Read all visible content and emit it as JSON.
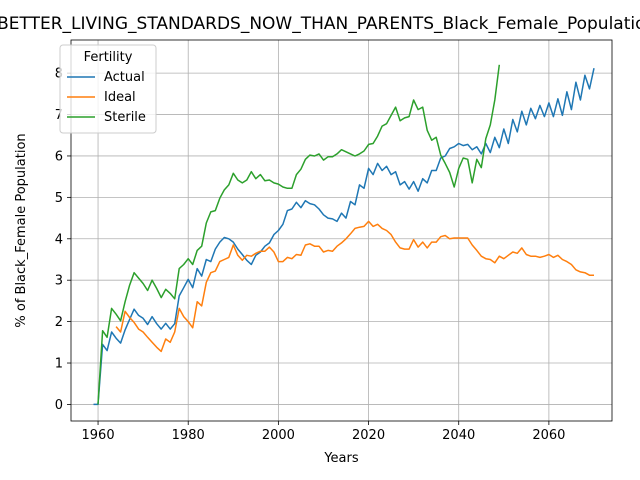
{
  "chart_data": {
    "type": "line",
    "title": "BETTER_LIVING_STANDARDS_NOW_THAN_PARENTS_Black_Female_Population_Sc",
    "xlabel": "Years",
    "ylabel": "% of Black_Female Population",
    "xlim": [
      1954,
      2074
    ],
    "ylim": [
      -0.4,
      8.8
    ],
    "xticks": [
      1960,
      1980,
      2000,
      2020,
      2040,
      2060
    ],
    "yticks": [
      0,
      1,
      2,
      3,
      4,
      5,
      6,
      7,
      8
    ],
    "grid": true,
    "legend": {
      "title": "Fertility",
      "placement": "top-left"
    },
    "series": [
      {
        "name": "Actual",
        "color": "#1f77b4",
        "points": [
          [
            1959,
            0
          ],
          [
            1960,
            0
          ],
          [
            1961,
            1.45
          ],
          [
            1962,
            1.3
          ],
          [
            1963,
            1.75
          ],
          [
            1964,
            1.6
          ],
          [
            1965,
            1.48
          ],
          [
            1966,
            1.8
          ],
          [
            1967,
            2.05
          ],
          [
            1968,
            2.3
          ],
          [
            1969,
            2.15
          ],
          [
            1970,
            2.08
          ],
          [
            1971,
            1.93
          ],
          [
            1972,
            2.12
          ],
          [
            1973,
            1.95
          ],
          [
            1974,
            1.82
          ],
          [
            1975,
            1.96
          ],
          [
            1976,
            1.82
          ],
          [
            1977,
            1.95
          ],
          [
            1978,
            2.62
          ],
          [
            1979,
            2.82
          ],
          [
            1980,
            3.02
          ],
          [
            1981,
            2.82
          ],
          [
            1982,
            3.28
          ],
          [
            1983,
            3.1
          ],
          [
            1984,
            3.5
          ],
          [
            1985,
            3.45
          ],
          [
            1986,
            3.75
          ],
          [
            1987,
            3.92
          ],
          [
            1988,
            4.03
          ],
          [
            1989,
            4.0
          ],
          [
            1990,
            3.92
          ],
          [
            1991,
            3.75
          ],
          [
            1992,
            3.62
          ],
          [
            1993,
            3.48
          ],
          [
            1994,
            3.38
          ],
          [
            1995,
            3.6
          ],
          [
            1996,
            3.68
          ],
          [
            1997,
            3.82
          ],
          [
            1998,
            3.9
          ],
          [
            1999,
            4.1
          ],
          [
            2000,
            4.2
          ],
          [
            2001,
            4.35
          ],
          [
            2002,
            4.68
          ],
          [
            2003,
            4.72
          ],
          [
            2004,
            4.88
          ],
          [
            2005,
            4.75
          ],
          [
            2006,
            4.92
          ],
          [
            2007,
            4.85
          ],
          [
            2008,
            4.82
          ],
          [
            2009,
            4.72
          ],
          [
            2010,
            4.58
          ],
          [
            2011,
            4.5
          ],
          [
            2012,
            4.48
          ],
          [
            2013,
            4.42
          ],
          [
            2014,
            4.62
          ],
          [
            2015,
            4.5
          ],
          [
            2016,
            4.9
          ],
          [
            2017,
            4.82
          ],
          [
            2018,
            5.3
          ],
          [
            2019,
            5.22
          ],
          [
            2020,
            5.7
          ],
          [
            2021,
            5.55
          ],
          [
            2022,
            5.82
          ],
          [
            2023,
            5.65
          ],
          [
            2024,
            5.75
          ],
          [
            2025,
            5.55
          ],
          [
            2026,
            5.62
          ],
          [
            2027,
            5.3
          ],
          [
            2028,
            5.38
          ],
          [
            2029,
            5.2
          ],
          [
            2030,
            5.38
          ],
          [
            2031,
            5.15
          ],
          [
            2032,
            5.45
          ],
          [
            2033,
            5.35
          ],
          [
            2034,
            5.65
          ],
          [
            2035,
            5.65
          ],
          [
            2036,
            5.95
          ],
          [
            2037,
            6.0
          ],
          [
            2038,
            6.18
          ],
          [
            2039,
            6.22
          ],
          [
            2040,
            6.3
          ],
          [
            2041,
            6.25
          ],
          [
            2042,
            6.28
          ],
          [
            2043,
            6.15
          ],
          [
            2044,
            6.22
          ],
          [
            2045,
            6.05
          ],
          [
            2046,
            6.3
          ],
          [
            2047,
            6.08
          ],
          [
            2048,
            6.45
          ],
          [
            2049,
            6.2
          ],
          [
            2050,
            6.65
          ],
          [
            2051,
            6.3
          ],
          [
            2052,
            6.88
          ],
          [
            2053,
            6.58
          ],
          [
            2054,
            7.08
          ],
          [
            2055,
            6.75
          ],
          [
            2056,
            7.15
          ],
          [
            2057,
            6.9
          ],
          [
            2058,
            7.22
          ],
          [
            2059,
            6.95
          ],
          [
            2060,
            7.28
          ],
          [
            2061,
            6.95
          ],
          [
            2062,
            7.38
          ],
          [
            2063,
            6.98
          ],
          [
            2064,
            7.55
          ],
          [
            2065,
            7.12
          ],
          [
            2066,
            7.78
          ],
          [
            2067,
            7.35
          ],
          [
            2068,
            7.95
          ],
          [
            2069,
            7.62
          ],
          [
            2070,
            8.12
          ]
        ]
      },
      {
        "name": "Ideal",
        "color": "#ff7f0e",
        "points": [
          [
            1964,
            1.88
          ],
          [
            1965,
            1.75
          ],
          [
            1966,
            2.25
          ],
          [
            1967,
            2.1
          ],
          [
            1968,
            1.98
          ],
          [
            1969,
            1.82
          ],
          [
            1970,
            1.75
          ],
          [
            1971,
            1.62
          ],
          [
            1972,
            1.5
          ],
          [
            1973,
            1.38
          ],
          [
            1974,
            1.28
          ],
          [
            1975,
            1.58
          ],
          [
            1976,
            1.5
          ],
          [
            1977,
            1.75
          ],
          [
            1978,
            2.32
          ],
          [
            1979,
            2.12
          ],
          [
            1980,
            2.0
          ],
          [
            1981,
            1.85
          ],
          [
            1982,
            2.48
          ],
          [
            1983,
            2.38
          ],
          [
            1984,
            2.95
          ],
          [
            1985,
            3.18
          ],
          [
            1986,
            3.22
          ],
          [
            1987,
            3.45
          ],
          [
            1988,
            3.5
          ],
          [
            1989,
            3.55
          ],
          [
            1990,
            3.85
          ],
          [
            1991,
            3.6
          ],
          [
            1992,
            3.48
          ],
          [
            1993,
            3.6
          ],
          [
            1994,
            3.58
          ],
          [
            1995,
            3.65
          ],
          [
            1996,
            3.7
          ],
          [
            1997,
            3.7
          ],
          [
            1998,
            3.8
          ],
          [
            1999,
            3.68
          ],
          [
            2000,
            3.45
          ],
          [
            2001,
            3.45
          ],
          [
            2002,
            3.55
          ],
          [
            2003,
            3.52
          ],
          [
            2004,
            3.62
          ],
          [
            2005,
            3.6
          ],
          [
            2006,
            3.85
          ],
          [
            2007,
            3.88
          ],
          [
            2008,
            3.82
          ],
          [
            2009,
            3.82
          ],
          [
            2010,
            3.68
          ],
          [
            2011,
            3.72
          ],
          [
            2012,
            3.7
          ],
          [
            2013,
            3.82
          ],
          [
            2014,
            3.9
          ],
          [
            2015,
            4.0
          ],
          [
            2016,
            4.12
          ],
          [
            2017,
            4.25
          ],
          [
            2018,
            4.28
          ],
          [
            2019,
            4.3
          ],
          [
            2020,
            4.42
          ],
          [
            2021,
            4.3
          ],
          [
            2022,
            4.35
          ],
          [
            2023,
            4.25
          ],
          [
            2024,
            4.2
          ],
          [
            2025,
            4.1
          ],
          [
            2026,
            3.92
          ],
          [
            2027,
            3.78
          ],
          [
            2028,
            3.75
          ],
          [
            2029,
            3.75
          ],
          [
            2030,
            3.98
          ],
          [
            2031,
            3.8
          ],
          [
            2032,
            3.92
          ],
          [
            2033,
            3.78
          ],
          [
            2034,
            3.92
          ],
          [
            2035,
            3.92
          ],
          [
            2036,
            4.05
          ],
          [
            2037,
            4.08
          ],
          [
            2038,
            4.0
          ],
          [
            2039,
            4.02
          ],
          [
            2040,
            4.02
          ],
          [
            2041,
            4.02
          ],
          [
            2042,
            4.02
          ],
          [
            2043,
            3.85
          ],
          [
            2044,
            3.72
          ],
          [
            2045,
            3.58
          ],
          [
            2046,
            3.52
          ],
          [
            2047,
            3.5
          ],
          [
            2048,
            3.42
          ],
          [
            2049,
            3.58
          ],
          [
            2050,
            3.52
          ],
          [
            2051,
            3.6
          ],
          [
            2052,
            3.68
          ],
          [
            2053,
            3.65
          ],
          [
            2054,
            3.78
          ],
          [
            2055,
            3.62
          ],
          [
            2056,
            3.58
          ],
          [
            2057,
            3.58
          ],
          [
            2058,
            3.55
          ],
          [
            2059,
            3.58
          ],
          [
            2060,
            3.62
          ],
          [
            2061,
            3.55
          ],
          [
            2062,
            3.6
          ],
          [
            2063,
            3.5
          ],
          [
            2064,
            3.45
          ],
          [
            2065,
            3.38
          ],
          [
            2066,
            3.25
          ],
          [
            2067,
            3.2
          ],
          [
            2068,
            3.18
          ],
          [
            2069,
            3.12
          ],
          [
            2070,
            3.12
          ]
        ]
      },
      {
        "name": "Sterile",
        "color": "#2ca02c",
        "points": [
          [
            1960,
            0
          ],
          [
            1961,
            1.78
          ],
          [
            1962,
            1.62
          ],
          [
            1963,
            2.32
          ],
          [
            1964,
            2.18
          ],
          [
            1965,
            2.02
          ],
          [
            1966,
            2.48
          ],
          [
            1967,
            2.88
          ],
          [
            1968,
            3.18
          ],
          [
            1969,
            3.05
          ],
          [
            1970,
            2.92
          ],
          [
            1971,
            2.75
          ],
          [
            1972,
            3.0
          ],
          [
            1973,
            2.8
          ],
          [
            1974,
            2.58
          ],
          [
            1975,
            2.78
          ],
          [
            1976,
            2.68
          ],
          [
            1977,
            2.55
          ],
          [
            1978,
            3.28
          ],
          [
            1979,
            3.38
          ],
          [
            1980,
            3.52
          ],
          [
            1981,
            3.38
          ],
          [
            1982,
            3.72
          ],
          [
            1983,
            3.82
          ],
          [
            1984,
            4.38
          ],
          [
            1985,
            4.65
          ],
          [
            1986,
            4.68
          ],
          [
            1987,
            4.98
          ],
          [
            1988,
            5.18
          ],
          [
            1989,
            5.3
          ],
          [
            1990,
            5.58
          ],
          [
            1991,
            5.42
          ],
          [
            1992,
            5.35
          ],
          [
            1993,
            5.42
          ],
          [
            1994,
            5.62
          ],
          [
            1995,
            5.45
          ],
          [
            1996,
            5.55
          ],
          [
            1997,
            5.4
          ],
          [
            1998,
            5.42
          ],
          [
            1999,
            5.35
          ],
          [
            2000,
            5.32
          ],
          [
            2001,
            5.25
          ],
          [
            2002,
            5.22
          ],
          [
            2003,
            5.22
          ],
          [
            2004,
            5.55
          ],
          [
            2005,
            5.68
          ],
          [
            2006,
            5.92
          ],
          [
            2007,
            6.02
          ],
          [
            2008,
            6.0
          ],
          [
            2009,
            6.05
          ],
          [
            2010,
            5.9
          ],
          [
            2011,
            5.98
          ],
          [
            2012,
            5.98
          ],
          [
            2013,
            6.05
          ],
          [
            2014,
            6.15
          ],
          [
            2015,
            6.1
          ],
          [
            2016,
            6.05
          ],
          [
            2017,
            6.0
          ],
          [
            2018,
            6.05
          ],
          [
            2019,
            6.12
          ],
          [
            2020,
            6.28
          ],
          [
            2021,
            6.3
          ],
          [
            2022,
            6.48
          ],
          [
            2023,
            6.72
          ],
          [
            2024,
            6.78
          ],
          [
            2025,
            6.98
          ],
          [
            2026,
            7.18
          ],
          [
            2027,
            6.85
          ],
          [
            2028,
            6.92
          ],
          [
            2029,
            6.95
          ],
          [
            2030,
            7.35
          ],
          [
            2031,
            7.12
          ],
          [
            2032,
            7.18
          ],
          [
            2033,
            6.62
          ],
          [
            2034,
            6.38
          ],
          [
            2035,
            6.45
          ],
          [
            2036,
            6.02
          ],
          [
            2037,
            5.82
          ],
          [
            2038,
            5.6
          ],
          [
            2039,
            5.25
          ],
          [
            2040,
            5.7
          ],
          [
            2041,
            5.95
          ],
          [
            2042,
            5.92
          ],
          [
            2043,
            5.35
          ],
          [
            2044,
            5.92
          ],
          [
            2045,
            5.72
          ],
          [
            2046,
            6.42
          ],
          [
            2047,
            6.75
          ],
          [
            2048,
            7.35
          ],
          [
            2049,
            8.2
          ]
        ]
      }
    ]
  }
}
